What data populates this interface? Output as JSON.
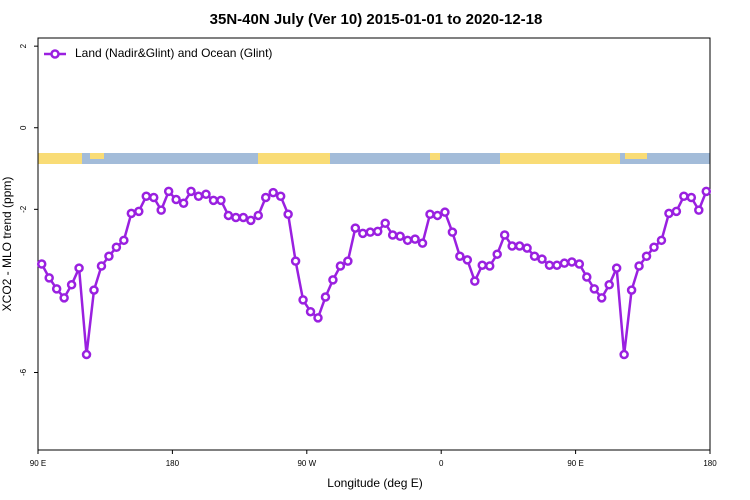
{
  "chart_data": {
    "type": "line",
    "title": "35N-40N July (Ver 10)   2015-01-01 to 2020-12-18",
    "x_label": "Longitude (deg E)",
    "y_label": "XCO2 - MLO trend (ppm)",
    "legend_position": "upper left",
    "xlim": [
      90,
      540
    ],
    "xticks": [
      {
        "value": 90,
        "label": "90 E"
      },
      {
        "value": 180,
        "label": "180"
      },
      {
        "value": 270,
        "label": "90 W"
      },
      {
        "value": 360,
        "label": "0"
      },
      {
        "value": 450,
        "label": "90 E"
      },
      {
        "value": 540,
        "label": "180"
      }
    ],
    "ylim": [
      -7.9,
      2.2
    ],
    "yticks": [
      2,
      0,
      -2,
      -6
    ],
    "x": [
      92.5,
      97.5,
      102.5,
      107.5,
      112.5,
      117.5,
      122.5,
      127.5,
      132.5,
      137.5,
      142.5,
      147.5,
      152.5,
      157.5,
      162.5,
      167.5,
      172.5,
      177.5,
      182.5,
      187.5,
      192.5,
      197.5,
      202.5,
      207.5,
      212.5,
      217.5,
      222.5,
      227.5,
      232.5,
      237.5,
      242.5,
      247.5,
      252.5,
      257.5,
      262.5,
      267.5,
      272.5,
      277.5,
      282.5,
      287.5,
      292.5,
      297.5,
      302.5,
      307.5,
      312.5,
      317.5,
      322.5,
      327.5,
      332.5,
      337.5,
      342.5,
      347.5,
      352.5,
      357.5,
      362.5,
      367.5,
      372.5,
      377.5,
      382.5,
      387.5,
      392.5,
      397.5,
      402.5,
      407.5,
      412.5,
      417.5,
      422.5,
      427.5,
      432.5,
      437.5,
      442.5,
      447.5,
      452.5,
      457.5,
      462.5,
      467.5,
      472.5,
      477.5,
      482.5,
      487.5,
      492.5,
      497.5,
      502.5,
      507.5,
      512.5,
      517.5,
      522.5,
      527.5,
      532.5,
      537.5
    ],
    "series": [
      {
        "name": "Land (Nadir&Glint) and Ocean (Glint)",
        "color": "#9a20e0",
        "values": [
          -3.34,
          -3.68,
          -3.95,
          -4.17,
          -3.85,
          -3.44,
          -5.56,
          -3.98,
          -3.39,
          -3.15,
          -2.93,
          -2.76,
          -2.1,
          -2.05,
          -1.68,
          -1.71,
          -2.02,
          -1.56,
          -1.76,
          -1.85,
          -1.56,
          -1.68,
          -1.63,
          -1.78,
          -1.78,
          -2.15,
          -2.2,
          -2.2,
          -2.27,
          -2.15,
          -1.71,
          -1.59,
          -1.68,
          -2.12,
          -3.27,
          -4.22,
          -4.51,
          -4.66,
          -4.15,
          -3.73,
          -3.39,
          -3.27,
          -2.46,
          -2.59,
          -2.56,
          -2.54,
          -2.34,
          -2.63,
          -2.66,
          -2.76,
          -2.73,
          -2.83,
          -2.12,
          -2.15,
          -2.07,
          -2.56,
          -3.15,
          -3.24,
          -3.76,
          -3.37,
          -3.39,
          -3.1,
          -2.63,
          -2.9,
          -2.9,
          -2.95,
          -3.15,
          -3.22,
          -3.37,
          -3.37,
          -3.32,
          -3.29,
          -3.34,
          -3.66,
          -3.95,
          -4.17,
          -3.85,
          -3.44,
          -5.56,
          -3.98,
          -3.39,
          -3.15,
          -2.93,
          -2.76,
          -2.1,
          -2.05,
          -1.68,
          -1.71,
          -2.02,
          -1.56
        ]
      }
    ]
  }
}
